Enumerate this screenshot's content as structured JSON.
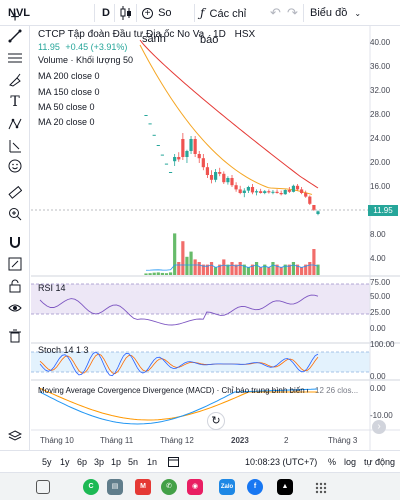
{
  "toolbar": {
    "symbol": "NVL",
    "interval": "D",
    "compare_label": "So sánh",
    "indicators_label": "Các chỉ báo",
    "chart_type_label": "Biểu đồ",
    "undo_icon": "undo-icon",
    "redo_icon": "redo-icon"
  },
  "legend": {
    "title": "CTCP Tập đoàn Đầu tư Địa ốc No Va",
    "interval": "1D",
    "exchange": "HSX",
    "price": "11.95",
    "change": "+0.45 (+3.91%)",
    "volume": "Volume · Khối lượng 50",
    "ma200": "MA 200 close 0",
    "ma150": "MA 150 close 0",
    "ma50": "MA 50 close 0",
    "ma20": "MA 20 close 0"
  },
  "price_axis": [
    "40.00",
    "36.00",
    "32.00",
    "28.00",
    "24.00",
    "20.00",
    "16.00",
    "8.00",
    "4.00"
  ],
  "last_price": "11.95",
  "rsi": {
    "label": "RSI 14",
    "ticks": [
      "75.00",
      "50.00",
      "25.00",
      "0.00"
    ]
  },
  "stoch": {
    "label": "Stoch 14 1 3",
    "ticks": [
      "100.00",
      "0.00"
    ]
  },
  "macd": {
    "label": "Moving Average Covergence Divergence (MACD) · Chỉ báo trung bình biến đổi p...",
    "params": "12 26 clos...",
    "ticks": [
      "0.00",
      "-10.00"
    ]
  },
  "time_axis": [
    "Tháng 10",
    "Tháng 11",
    "Tháng 12",
    "2023",
    "2",
    "Tháng 3"
  ],
  "ranges": [
    "5y",
    "1y",
    "6p",
    "3p",
    "1p",
    "5n",
    "1n"
  ],
  "range_bar": {
    "time": "10:08:23 (UTC+7)",
    "percent": "%",
    "log": "log",
    "auto": "tự động"
  },
  "colors": {
    "up": "#26a69a",
    "down": "#ef5350",
    "ma_red": "#e53935",
    "ma_orange": "#f5a623",
    "rsi": "#7e57c2",
    "rsi_band": "#ede7f6",
    "stoch_k": "#2962ff",
    "stoch_d": "#ff6d00",
    "stoch_band": "#e3f2fd",
    "macd": "#2196f3",
    "signal": "#ff9800"
  },
  "chart_data": {
    "type": "candlestick",
    "description_free": true,
    "candles": [
      [
        28.0,
        28.0,
        28.0,
        28.0
      ],
      [
        26.6,
        26.6,
        26.6,
        26.6
      ],
      [
        24.7,
        24.7,
        24.7,
        24.7
      ],
      [
        23.0,
        23.0,
        23.0,
        23.0
      ],
      [
        21.4,
        21.4,
        21.4,
        21.4
      ],
      [
        19.9,
        19.9,
        19.9,
        19.9
      ],
      [
        18.5,
        18.5,
        18.5,
        18.5
      ],
      [
        20.3,
        21.5,
        19.5,
        21.0
      ],
      [
        21.0,
        21.8,
        20.2,
        20.6
      ],
      [
        24.0,
        25.0,
        20.5,
        21.0
      ],
      [
        21.0,
        22.2,
        20.0,
        22.0
      ],
      [
        22.0,
        24.5,
        21.5,
        24.0
      ],
      [
        24.0,
        24.5,
        21.0,
        21.5
      ],
      [
        21.5,
        22.0,
        20.0,
        20.8
      ],
      [
        20.8,
        21.5,
        18.8,
        19.3
      ],
      [
        19.3,
        20.0,
        17.5,
        18.0
      ],
      [
        18.0,
        18.8,
        16.6,
        17.2
      ],
      [
        17.2,
        19.0,
        16.8,
        18.5
      ],
      [
        18.5,
        19.2,
        17.8,
        18.2
      ],
      [
        18.2,
        18.6,
        16.5,
        16.8
      ],
      [
        16.8,
        17.8,
        16.4,
        17.5
      ],
      [
        17.5,
        18.0,
        16.0,
        16.3
      ],
      [
        16.3,
        16.8,
        15.2,
        15.6
      ],
      [
        15.6,
        16.2,
        14.8,
        15.0
      ],
      [
        15.0,
        15.8,
        14.3,
        15.4
      ],
      [
        15.4,
        16.2,
        15.0,
        16.0
      ],
      [
        16.0,
        16.5,
        14.8,
        15.1
      ],
      [
        15.1,
        15.6,
        14.6,
        15.3
      ],
      [
        15.3,
        15.7,
        14.9,
        15.0
      ],
      [
        15.0,
        15.5,
        14.8,
        15.3
      ],
      [
        15.3,
        15.6,
        14.9,
        15.1
      ],
      [
        15.1,
        15.5,
        14.8,
        15.2
      ],
      [
        15.2,
        15.6,
        14.9,
        15.0
      ],
      [
        15.0,
        15.4,
        14.6,
        14.8
      ],
      [
        14.8,
        15.6,
        14.7,
        15.5
      ],
      [
        15.5,
        16.0,
        15.0,
        15.2
      ],
      [
        15.2,
        16.4,
        15.1,
        16.2
      ],
      [
        16.2,
        16.5,
        15.4,
        15.6
      ],
      [
        15.6,
        16.0,
        14.8,
        15.0
      ],
      [
        15.0,
        15.4,
        14.2,
        14.4
      ],
      [
        14.4,
        14.6,
        13.0,
        13.2
      ],
      [
        13.0,
        13.0,
        12.0,
        12.2
      ],
      [
        11.5,
        12.1,
        11.3,
        11.95
      ]
    ],
    "volumes": [
      0.6,
      0.7,
      0.9,
      1.0,
      0.8,
      0.7,
      1.0,
      16,
      5,
      13,
      7,
      9,
      6,
      5,
      4,
      4,
      5,
      3,
      4,
      6,
      4,
      5,
      4,
      5,
      4,
      3,
      4,
      5,
      3,
      4,
      3,
      5,
      4,
      3,
      4,
      4,
      5,
      4,
      3,
      4,
      5,
      10,
      4
    ],
    "ylim": [
      8,
      42
    ]
  }
}
